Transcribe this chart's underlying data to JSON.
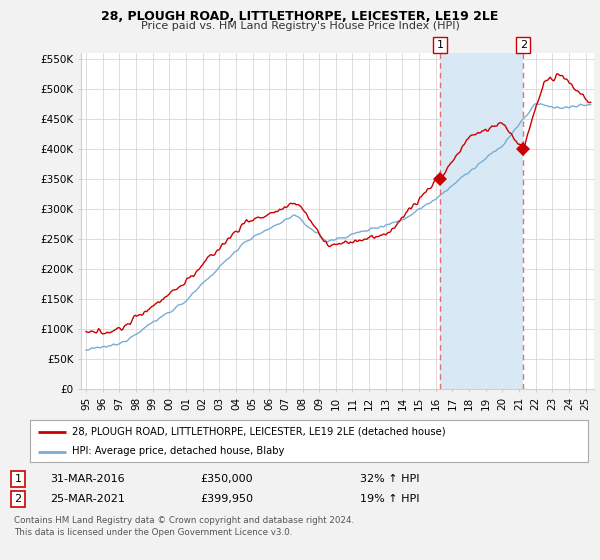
{
  "title1": "28, PLOUGH ROAD, LITTLETHORPE, LEICESTER, LE19 2LE",
  "title2": "Price paid vs. HM Land Registry's House Price Index (HPI)",
  "legend_label_red": "28, PLOUGH ROAD, LITTLETHORPE, LEICESTER, LE19 2LE (detached house)",
  "legend_label_blue": "HPI: Average price, detached house, Blaby",
  "marker1_date": "31-MAR-2016",
  "marker1_price": "£350,000",
  "marker1_hpi": "32% ↑ HPI",
  "marker1_year": 2016.25,
  "marker1_value": 350000,
  "marker2_date": "25-MAR-2021",
  "marker2_price": "£399,950",
  "marker2_hpi": "19% ↑ HPI",
  "marker2_year": 2021.25,
  "marker2_value": 399950,
  "footer1": "Contains HM Land Registry data © Crown copyright and database right 2024.",
  "footer2": "This data is licensed under the Open Government Licence v3.0.",
  "ylim_top": 560000,
  "xlim_left": 1994.7,
  "xlim_right": 2025.5,
  "yticks": [
    0,
    50000,
    100000,
    150000,
    200000,
    250000,
    300000,
    350000,
    400000,
    450000,
    500000,
    550000
  ],
  "ytick_labels": [
    "£0",
    "£50K",
    "£100K",
    "£150K",
    "£200K",
    "£250K",
    "£300K",
    "£350K",
    "£400K",
    "£450K",
    "£500K",
    "£550K"
  ],
  "xticks": [
    1995,
    1996,
    1997,
    1998,
    1999,
    2000,
    2001,
    2002,
    2003,
    2004,
    2005,
    2006,
    2007,
    2008,
    2009,
    2010,
    2011,
    2012,
    2013,
    2014,
    2015,
    2016,
    2017,
    2018,
    2019,
    2020,
    2021,
    2022,
    2023,
    2024,
    2025
  ],
  "background_color": "#f2f2f2",
  "plot_bg_color": "#ffffff",
  "red_color": "#cc0000",
  "blue_color": "#7aadd4",
  "shade_color": "#d8e8f5",
  "dashed_color": "#e07070",
  "grid_color": "#d0d0d0"
}
